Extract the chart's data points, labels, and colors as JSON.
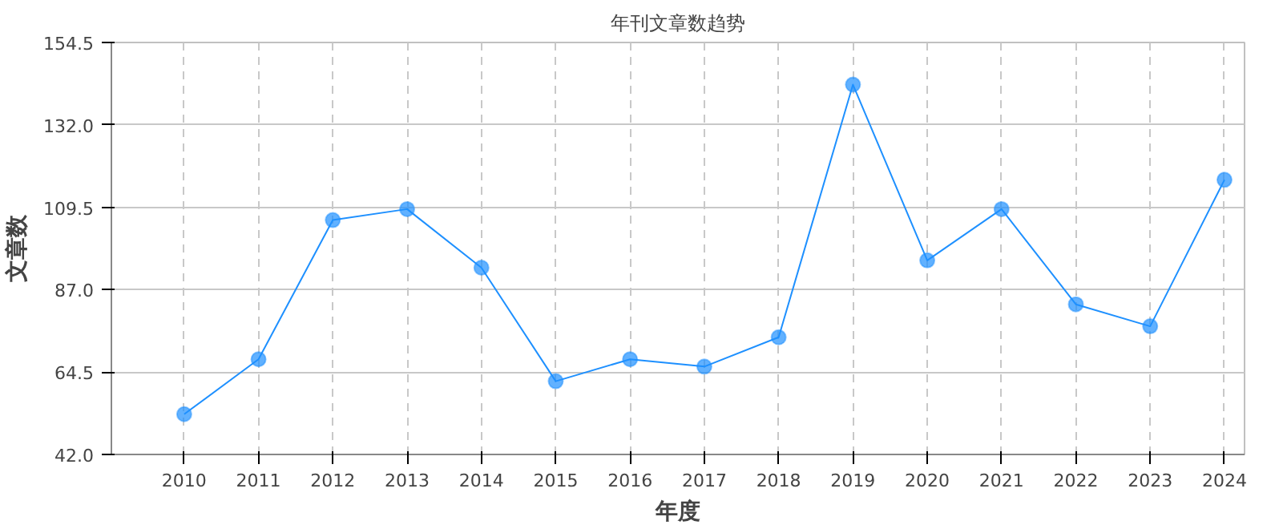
{
  "chart_data": {
    "type": "line",
    "title": "年刊文章数趋势",
    "xlabel": "年度",
    "ylabel": "文章数",
    "categories": [
      "2010",
      "2011",
      "2012",
      "2013",
      "2014",
      "2015",
      "2016",
      "2017",
      "2018",
      "2019",
      "2020",
      "2021",
      "2022",
      "2023",
      "2024"
    ],
    "series": [
      {
        "color": "#1e90ff",
        "values": [
          53,
          68,
          106,
          109,
          93,
          62,
          68,
          66,
          74,
          143,
          95,
          109,
          83,
          77,
          117
        ]
      }
    ],
    "ylim": [
      42.0,
      154.5
    ],
    "yticks": [
      {
        "value": 42.0,
        "label": "42.0"
      },
      {
        "value": 64.5,
        "label": "64.5"
      },
      {
        "value": 87.0,
        "label": "87.0"
      },
      {
        "value": 109.5,
        "label": "109.5"
      },
      {
        "value": 132.0,
        "label": "132.0"
      },
      {
        "value": 154.5,
        "label": "154.5"
      }
    ],
    "grid": true,
    "marker": "circle",
    "line_style": "solid"
  }
}
